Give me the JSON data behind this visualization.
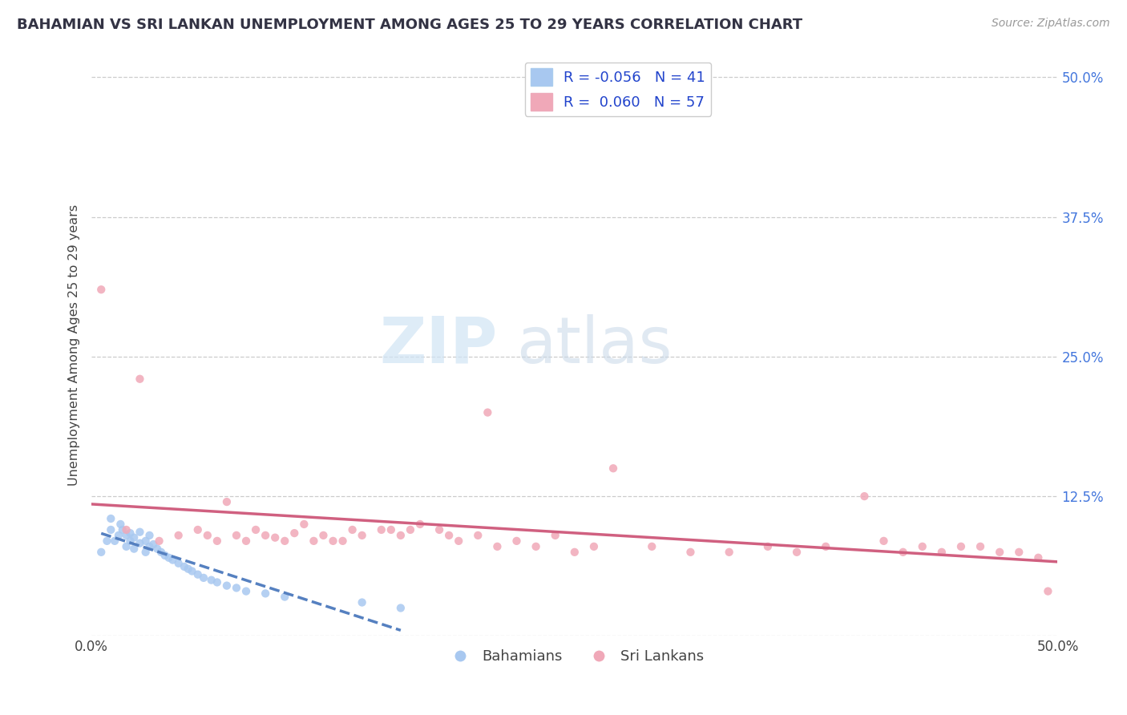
{
  "title": "BAHAMIAN VS SRI LANKAN UNEMPLOYMENT AMONG AGES 25 TO 29 YEARS CORRELATION CHART",
  "source": "Source: ZipAtlas.com",
  "ylabel": "Unemployment Among Ages 25 to 29 years",
  "xlim": [
    0.0,
    0.5
  ],
  "ylim": [
    0.0,
    0.52
  ],
  "ytick_values": [
    0.0,
    0.125,
    0.25,
    0.375,
    0.5
  ],
  "ytick_labels": [
    "",
    "12.5%",
    "25.0%",
    "37.5%",
    "50.0%"
  ],
  "xtick_values": [
    0.0,
    0.1,
    0.2,
    0.3,
    0.4,
    0.5
  ],
  "xtick_labels": [
    "0.0%",
    "",
    "",
    "",
    "",
    "50.0%"
  ],
  "bahamian_color": "#a8c8f0",
  "srilankan_color": "#f0a8b8",
  "bahamian_line_color": "#5580c0",
  "srilankan_line_color": "#d06080",
  "R_bahamian": -0.056,
  "N_bahamian": 41,
  "R_srilankan": 0.06,
  "N_srilankan": 57,
  "bahamian_x": [
    0.005,
    0.008,
    0.01,
    0.01,
    0.012,
    0.014,
    0.015,
    0.016,
    0.018,
    0.018,
    0.02,
    0.02,
    0.022,
    0.022,
    0.025,
    0.025,
    0.028,
    0.028,
    0.03,
    0.03,
    0.032,
    0.034,
    0.036,
    0.038,
    0.04,
    0.042,
    0.045,
    0.048,
    0.05,
    0.052,
    0.055,
    0.058,
    0.062,
    0.065,
    0.07,
    0.075,
    0.08,
    0.09,
    0.1,
    0.14,
    0.16
  ],
  "bahamian_y": [
    0.075,
    0.085,
    0.095,
    0.105,
    0.085,
    0.09,
    0.1,
    0.095,
    0.08,
    0.09,
    0.085,
    0.092,
    0.078,
    0.088,
    0.083,
    0.093,
    0.075,
    0.085,
    0.08,
    0.09,
    0.082,
    0.078,
    0.075,
    0.072,
    0.07,
    0.068,
    0.065,
    0.062,
    0.06,
    0.058,
    0.055,
    0.052,
    0.05,
    0.048,
    0.045,
    0.043,
    0.04,
    0.038,
    0.035,
    0.03,
    0.025
  ],
  "srilankan_x": [
    0.005,
    0.018,
    0.025,
    0.035,
    0.045,
    0.055,
    0.06,
    0.065,
    0.07,
    0.075,
    0.08,
    0.085,
    0.09,
    0.095,
    0.1,
    0.105,
    0.11,
    0.115,
    0.12,
    0.125,
    0.13,
    0.135,
    0.14,
    0.15,
    0.155,
    0.16,
    0.165,
    0.17,
    0.18,
    0.185,
    0.19,
    0.2,
    0.205,
    0.21,
    0.22,
    0.23,
    0.24,
    0.25,
    0.26,
    0.27,
    0.29,
    0.31,
    0.33,
    0.35,
    0.365,
    0.38,
    0.4,
    0.41,
    0.42,
    0.43,
    0.44,
    0.45,
    0.46,
    0.47,
    0.48,
    0.49,
    0.495
  ],
  "srilankan_y": [
    0.31,
    0.095,
    0.23,
    0.085,
    0.09,
    0.095,
    0.09,
    0.085,
    0.12,
    0.09,
    0.085,
    0.095,
    0.09,
    0.088,
    0.085,
    0.092,
    0.1,
    0.085,
    0.09,
    0.085,
    0.085,
    0.095,
    0.09,
    0.095,
    0.095,
    0.09,
    0.095,
    0.1,
    0.095,
    0.09,
    0.085,
    0.09,
    0.2,
    0.08,
    0.085,
    0.08,
    0.09,
    0.075,
    0.08,
    0.15,
    0.08,
    0.075,
    0.075,
    0.08,
    0.075,
    0.08,
    0.125,
    0.085,
    0.075,
    0.08,
    0.075,
    0.08,
    0.08,
    0.075,
    0.075,
    0.07,
    0.04
  ]
}
